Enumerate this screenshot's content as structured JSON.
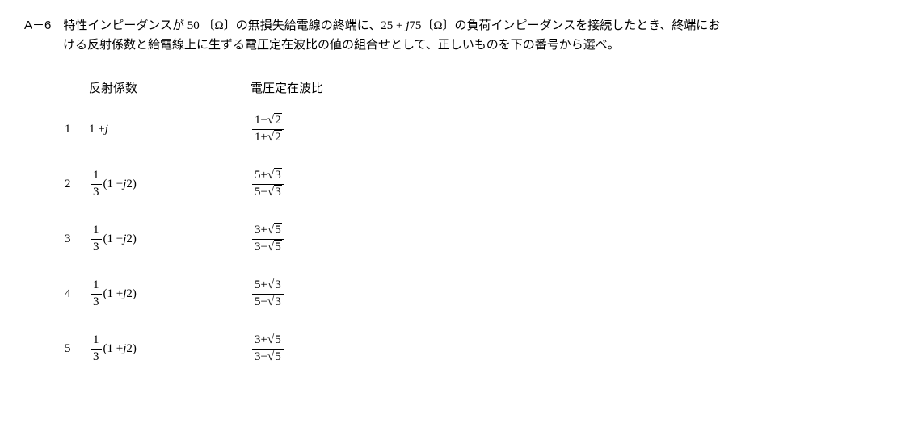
{
  "question": {
    "number": "A－6",
    "line1_part1": "　特性インピーダンスが 50 〔Ω〕の無損失給電線の終端に、25 + ",
    "line1_jvar": "j",
    "line1_part2": "75〔Ω〕の負荷インピーダンスを接続したとき、終端にお",
    "line2": "ける反射係数と給電線上に生ずる電圧定在波比の値の組合せとして、正しいものを下の番号から選べ。"
  },
  "headers": {
    "col1": "反射係数",
    "col2": "電圧定在波比"
  },
  "options": [
    {
      "num": "1",
      "refl": {
        "type": "simple",
        "prefix": "1 + ",
        "jpart": "j",
        "suffix": ""
      },
      "vswr": {
        "num_pre": "1−",
        "num_rad": "2",
        "den_pre": "1+",
        "den_rad": "2"
      }
    },
    {
      "num": "2",
      "refl": {
        "type": "frac",
        "fnum": "1",
        "fden": "3",
        "paren_pre": "(1 − ",
        "jpart": "j",
        "paren_post": "2)"
      },
      "vswr": {
        "num_pre": "5+",
        "num_rad": "3",
        "den_pre": "5−",
        "den_rad": "3"
      }
    },
    {
      "num": "3",
      "refl": {
        "type": "frac",
        "fnum": "1",
        "fden": "3",
        "paren_pre": "(1 − ",
        "jpart": "j",
        "paren_post": "2)"
      },
      "vswr": {
        "num_pre": "3+",
        "num_rad": "5",
        "den_pre": "3−",
        "den_rad": "5"
      }
    },
    {
      "num": "4",
      "refl": {
        "type": "frac",
        "fnum": "1",
        "fden": "3",
        "paren_pre": "(1 + ",
        "jpart": "j",
        "paren_post": "2)"
      },
      "vswr": {
        "num_pre": "5+",
        "num_rad": "3",
        "den_pre": "5−",
        "den_rad": "3"
      }
    },
    {
      "num": "5",
      "refl": {
        "type": "frac",
        "fnum": "1",
        "fden": "3",
        "paren_pre": "(1 + ",
        "jpart": "j",
        "paren_post": "2)"
      },
      "vswr": {
        "num_pre": "3+",
        "num_rad": "5",
        "den_pre": "3−",
        "den_rad": "5"
      }
    }
  ]
}
